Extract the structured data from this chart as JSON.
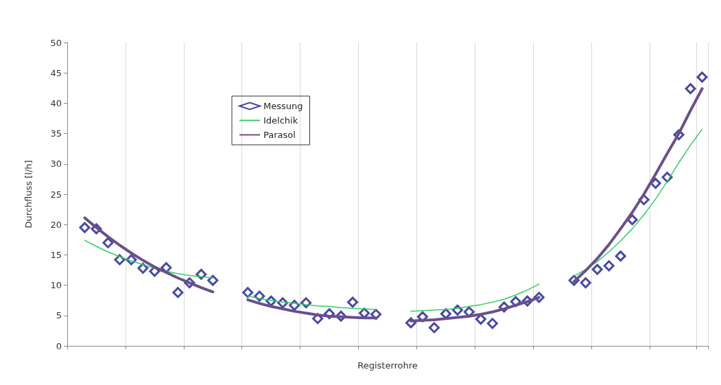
{
  "chart_data": {
    "type": "scatter",
    "xlabel": "Registerrohre",
    "ylabel": "Durchfluss [l/h]",
    "categories": [
      null,
      null,
      null,
      null,
      null,
      null,
      null,
      null,
      null,
      null,
      null,
      null,
      null,
      null,
      null,
      null,
      null,
      null,
      null,
      null,
      null,
      null,
      null,
      null,
      null,
      null,
      null,
      null,
      null,
      null,
      null,
      null,
      null,
      null,
      null,
      null,
      null,
      null,
      null,
      null,
      null,
      null,
      null,
      null,
      null,
      null,
      null,
      null,
      null,
      null,
      null,
      null,
      null,
      null,
      null
    ],
    "series": [
      {
        "name": "Messung",
        "color": "#1a1a8c",
        "marker": "diamond",
        "values": [
          null,
          19.5,
          19.3,
          17,
          14.2,
          14.2,
          12.8,
          12.3,
          12.9,
          8.8,
          10.4,
          11.8,
          10.8,
          null,
          null,
          8.8,
          8.2,
          7.4,
          7.1,
          6.7,
          7.1,
          4.5,
          5.3,
          4.9,
          7.2,
          5.4,
          5.2,
          null,
          null,
          3.8,
          4.8,
          3.0,
          5.3,
          5.9,
          5.6,
          4.4,
          3.7,
          6.4,
          7.3,
          7.4,
          8.0,
          null,
          null,
          10.8,
          10.4,
          12.6,
          13.2,
          14.8,
          20.8,
          24.1,
          26.8,
          27.8,
          34.8,
          42.4,
          44.3
        ]
      },
      {
        "name": "Idelchik",
        "type": "line",
        "color": "#33cc66",
        "marker": "none",
        "values": [
          null,
          17.4,
          16.4,
          15.5,
          14.7,
          14,
          13.4,
          12.8,
          12.3,
          11.9,
          11.6,
          11.4,
          11.2,
          null,
          null,
          8.2,
          7.8,
          7.5,
          7.2,
          7.0,
          6.8,
          6.6,
          6.5,
          6.3,
          6.2,
          6.1,
          6.0,
          null,
          null,
          5.7,
          5.8,
          5.9,
          6.0,
          6.2,
          6.5,
          6.8,
          7.2,
          7.7,
          8.4,
          9.2,
          10.2,
          null,
          null,
          11.5,
          12.6,
          13.9,
          15.5,
          17.3,
          19.3,
          21.6,
          24.2,
          27.1,
          30.2,
          33.1,
          35.7
        ]
      },
      {
        "name": "Parasol",
        "type": "line",
        "color": "#6a4f8a",
        "marker": "none",
        "values": [
          null,
          21.1,
          19.5,
          18,
          16.6,
          15.3,
          14.1,
          13,
          12.1,
          11.2,
          10.4,
          9.6,
          8.9,
          null,
          null,
          7.6,
          7.0,
          6.5,
          6.1,
          5.7,
          5.4,
          5.1,
          4.9,
          4.8,
          4.7,
          4.6,
          4.6,
          null,
          null,
          4.1,
          4.2,
          4.3,
          4.5,
          4.7,
          4.9,
          5.2,
          5.6,
          6.1,
          6.7,
          7.3,
          8.0,
          null,
          null,
          10.6,
          12.4,
          14.4,
          16.7,
          19.3,
          22.0,
          25.0,
          28.3,
          31.7,
          35.0,
          38.8,
          42.4
        ]
      }
    ],
    "ylim": [
      0,
      50
    ],
    "yticks": [
      0,
      5,
      10,
      15,
      20,
      25,
      30,
      35,
      40,
      45,
      50
    ],
    "grid": "x",
    "legend": "top left"
  }
}
